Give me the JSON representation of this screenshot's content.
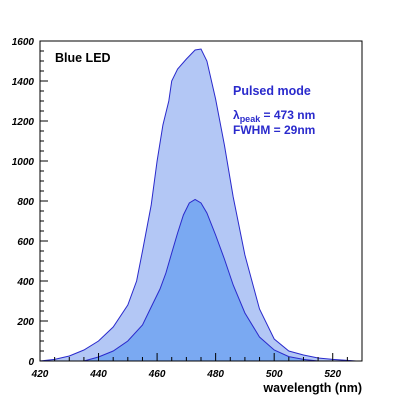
{
  "chart_data": {
    "type": "area",
    "title": "",
    "panel_label": "Blue LED",
    "xlabel": "wavelength (nm)",
    "ylabel": "",
    "xlim": [
      420,
      530
    ],
    "ylim": [
      0,
      1600
    ],
    "x_ticks": [
      "420",
      "440",
      "460",
      "480",
      "500",
      "520"
    ],
    "y_ticks": [
      "0",
      "200",
      "400",
      "600",
      "800",
      "1000",
      "1200",
      "1400",
      "1600"
    ],
    "grid": false,
    "legend": "none",
    "annotations": {
      "mode": "Pulsed mode",
      "lambda_symbol": "λ",
      "lambda_sub": "peak",
      "lambda_value": " = 473 nm",
      "fwhm": "FWHM = 29nm"
    },
    "series": [
      {
        "color": "#b3c7f5",
        "stroke": "#2a2acc",
        "points": [
          [
            420,
            0
          ],
          [
            425,
            8
          ],
          [
            430,
            25
          ],
          [
            435,
            55
          ],
          [
            440,
            100
          ],
          [
            445,
            170
          ],
          [
            450,
            280
          ],
          [
            453,
            400
          ],
          [
            455,
            550
          ],
          [
            458,
            780
          ],
          [
            460,
            1000
          ],
          [
            462,
            1180
          ],
          [
            464,
            1300
          ],
          [
            465,
            1400
          ],
          [
            467,
            1460
          ],
          [
            470,
            1510
          ],
          [
            473,
            1555
          ],
          [
            475,
            1560
          ],
          [
            477,
            1500
          ],
          [
            480,
            1310
          ],
          [
            483,
            1080
          ],
          [
            486,
            820
          ],
          [
            490,
            530
          ],
          [
            495,
            260
          ],
          [
            500,
            110
          ],
          [
            505,
            50
          ],
          [
            510,
            30
          ],
          [
            515,
            15
          ],
          [
            520,
            8
          ],
          [
            525,
            3
          ],
          [
            528,
            0
          ]
        ]
      },
      {
        "color": "#7aa9f2",
        "stroke": "#2a2acc",
        "points": [
          [
            435,
            0
          ],
          [
            440,
            20
          ],
          [
            445,
            50
          ],
          [
            450,
            100
          ],
          [
            455,
            180
          ],
          [
            458,
            270
          ],
          [
            461,
            360
          ],
          [
            463,
            440
          ],
          [
            465,
            540
          ],
          [
            467,
            640
          ],
          [
            469,
            730
          ],
          [
            471,
            790
          ],
          [
            473,
            808
          ],
          [
            475,
            790
          ],
          [
            477,
            740
          ],
          [
            480,
            630
          ],
          [
            483,
            510
          ],
          [
            486,
            380
          ],
          [
            490,
            240
          ],
          [
            495,
            120
          ],
          [
            500,
            55
          ],
          [
            505,
            22
          ],
          [
            510,
            8
          ],
          [
            515,
            0
          ]
        ]
      }
    ]
  }
}
